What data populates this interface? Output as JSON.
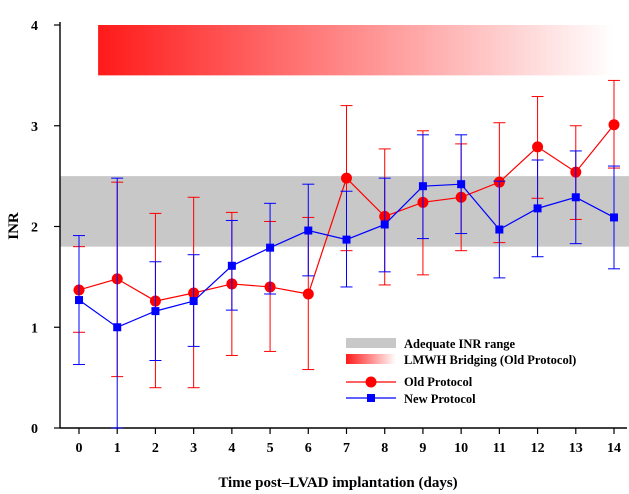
{
  "colors": {
    "old": "#ff0000",
    "new": "#0000ff",
    "band": "#c8c8c8",
    "bridge_start": "#ff1a1a",
    "bridge_end": "#ffffff"
  },
  "chart_data": {
    "type": "line",
    "title": "",
    "xlabel": "Time post–LVAD implantation (days)",
    "ylabel": "INR",
    "xlim": [
      -0.3,
      14.3
    ],
    "ylim": [
      0,
      4
    ],
    "xticks": [
      0,
      1,
      2,
      3,
      4,
      5,
      6,
      7,
      8,
      9,
      10,
      11,
      12,
      13,
      14
    ],
    "yticks": [
      0,
      1,
      2,
      3,
      4
    ],
    "grid": false,
    "legend_position": "bottom-right",
    "adequate_range": {
      "label": "Adequate INR range",
      "y": [
        1.8,
        2.5
      ]
    },
    "bridging": {
      "label": "LMWH Bridging (Old Protocol)",
      "x": [
        0.5,
        14
      ],
      "y": [
        3.5,
        4.0
      ]
    },
    "series": [
      {
        "name": "Old Protocol",
        "marker": "circle",
        "x": [
          0,
          1,
          2,
          3,
          4,
          5,
          6,
          7,
          8,
          9,
          10,
          11,
          12,
          13,
          14
        ],
        "y": [
          1.37,
          1.48,
          1.26,
          1.34,
          1.43,
          1.4,
          1.33,
          2.48,
          2.1,
          2.24,
          2.29,
          2.44,
          2.79,
          2.54,
          3.01
        ],
        "err_low": [
          0.95,
          0.51,
          0.4,
          0.4,
          0.72,
          0.76,
          0.58,
          1.76,
          1.42,
          1.52,
          1.76,
          1.84,
          2.28,
          2.07,
          2.58
        ],
        "err_high": [
          1.8,
          2.44,
          2.13,
          2.29,
          2.14,
          2.05,
          2.09,
          3.2,
          2.77,
          2.95,
          2.82,
          3.03,
          3.29,
          3.0,
          3.45
        ]
      },
      {
        "name": "New Protocol",
        "marker": "square",
        "x": [
          0,
          1,
          2,
          3,
          4,
          5,
          6,
          7,
          8,
          9,
          10,
          11,
          12,
          13,
          14
        ],
        "y": [
          1.27,
          1.0,
          1.16,
          1.26,
          1.61,
          1.79,
          1.96,
          1.87,
          2.02,
          2.4,
          2.42,
          1.97,
          2.18,
          2.29,
          2.09
        ],
        "err_low": [
          0.63,
          0.0,
          0.67,
          0.81,
          1.17,
          1.33,
          1.51,
          1.4,
          1.55,
          1.88,
          1.93,
          1.49,
          1.7,
          1.83,
          1.58
        ],
        "err_high": [
          1.91,
          2.48,
          1.65,
          1.72,
          2.06,
          2.23,
          2.42,
          2.35,
          2.48,
          2.91,
          2.91,
          2.45,
          2.66,
          2.75,
          2.6
        ]
      }
    ]
  }
}
